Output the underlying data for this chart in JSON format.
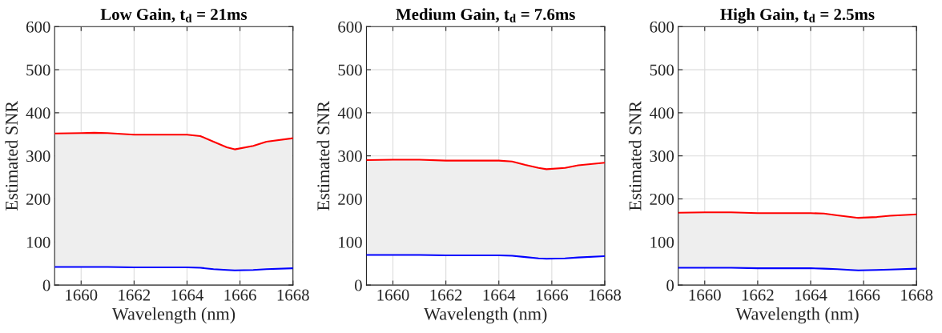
{
  "chart_data": [
    {
      "type": "line",
      "title": "Low Gain, t$_{d}$ = 21ms",
      "xlabel": "Wavelength (nm)",
      "ylabel": "Estimated SNR",
      "xlim": [
        1659,
        1668
      ],
      "xticks": [
        1660,
        1662,
        1664,
        1666,
        1668
      ],
      "ylim": [
        0,
        600
      ],
      "yticks": [
        0,
        100,
        200,
        300,
        400,
        500,
        600
      ],
      "grid": true,
      "legend": false,
      "x": [
        1659,
        1660,
        1660.5,
        1661,
        1662,
        1663,
        1664,
        1664.5,
        1665,
        1665.5,
        1665.8,
        1666.5,
        1667,
        1668
      ],
      "series": [
        {
          "color": "#ff0000",
          "values": [
            352,
            353,
            353.5,
            353,
            349,
            349,
            349,
            346,
            333,
            320,
            315,
            323,
            333,
            341
          ],
          "lower": [
            42,
            42,
            42,
            42,
            41,
            41,
            41,
            40,
            37,
            35,
            34,
            35,
            37,
            39
          ],
          "upper": [
            352,
            353,
            353.5,
            353,
            349,
            349,
            349,
            346,
            333,
            320,
            315,
            323,
            333,
            341
          ]
        },
        {
          "color": "#0000ff",
          "values": [
            42,
            42,
            42,
            42,
            41,
            41,
            41,
            40,
            37,
            35,
            34,
            35,
            37,
            39
          ]
        }
      ]
    },
    {
      "type": "line",
      "title": "Medium Gain, t$_{d}$ = 7.6ms",
      "xlabel": "Wavelength (nm)",
      "ylabel": "Estimated SNR",
      "xlim": [
        1659,
        1668
      ],
      "xticks": [
        1660,
        1662,
        1664,
        1666,
        1668
      ],
      "ylim": [
        0,
        600
      ],
      "yticks": [
        0,
        100,
        200,
        300,
        400,
        500,
        600
      ],
      "grid": true,
      "legend": false,
      "x": [
        1659,
        1660,
        1660.5,
        1661,
        1662,
        1663,
        1664,
        1664.5,
        1665,
        1665.5,
        1665.8,
        1666.5,
        1667,
        1668
      ],
      "series": [
        {
          "color": "#ff0000",
          "values": [
            290,
            291,
            291,
            291,
            289,
            289,
            289,
            287,
            279,
            272,
            269,
            272,
            278,
            284
          ],
          "lower": [
            70,
            70,
            70,
            70,
            69,
            69,
            69,
            68,
            65,
            62,
            61,
            62,
            64,
            67
          ],
          "upper": [
            290,
            291,
            291,
            291,
            289,
            289,
            289,
            287,
            279,
            272,
            269,
            272,
            278,
            284
          ]
        },
        {
          "color": "#0000ff",
          "values": [
            70,
            70,
            70,
            70,
            69,
            69,
            69,
            68,
            65,
            62,
            61,
            62,
            64,
            67
          ]
        }
      ]
    },
    {
      "type": "line",
      "title": "High Gain, t$_{d}$ = 2.5ms",
      "xlabel": "Wavelength (nm)",
      "ylabel": "Estimated SNR",
      "xlim": [
        1659,
        1668
      ],
      "xticks": [
        1660,
        1662,
        1664,
        1666,
        1668
      ],
      "ylim": [
        0,
        600
      ],
      "yticks": [
        0,
        100,
        200,
        300,
        400,
        500,
        600
      ],
      "grid": true,
      "legend": false,
      "x": [
        1659,
        1660,
        1660.5,
        1661,
        1662,
        1663,
        1664,
        1664.5,
        1665,
        1665.5,
        1665.8,
        1666.5,
        1667,
        1668
      ],
      "series": [
        {
          "color": "#ff0000",
          "values": [
            168,
            169,
            169,
            169,
            167,
            167,
            167,
            166,
            162,
            158,
            156,
            158,
            161,
            164
          ],
          "lower": [
            40,
            40,
            40,
            40,
            39,
            39,
            39,
            38,
            37,
            35,
            34,
            35,
            36,
            38
          ],
          "upper": [
            168,
            169,
            169,
            169,
            167,
            167,
            167,
            166,
            162,
            158,
            156,
            158,
            161,
            164
          ]
        },
        {
          "color": "#0000ff",
          "values": [
            40,
            40,
            40,
            40,
            39,
            39,
            39,
            38,
            37,
            35,
            34,
            35,
            36,
            38
          ]
        }
      ]
    }
  ]
}
